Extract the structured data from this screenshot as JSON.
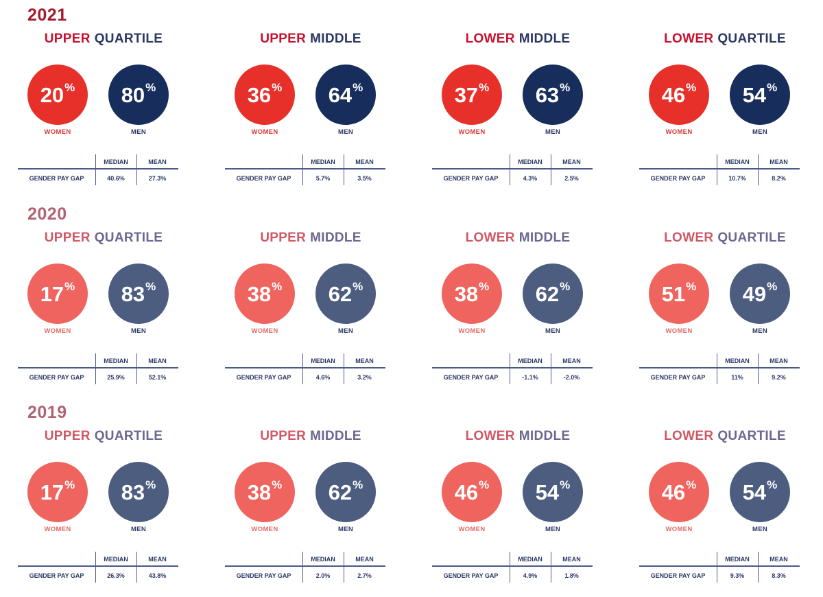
{
  "labels": {
    "women": "WOMEN",
    "men": "MEN",
    "median": "MEDIAN",
    "mean": "MEAN",
    "row": "GENDER PAY GAP",
    "pct": "%"
  },
  "years": [
    {
      "year": "2021",
      "colors": {
        "year": "#a01c2c",
        "women": "#e7302a",
        "men": "#172d5b",
        "title_a": "#c8102e",
        "title_b": "#2b3763",
        "women_label": "#d83a34"
      },
      "quartiles": [
        {
          "title_a": "UPPER",
          "title_b": "QUARTILE",
          "women": "20",
          "men": "80",
          "median": "40.6%",
          "mean": "27.3%"
        },
        {
          "title_a": "UPPER",
          "title_b": "MIDDLE",
          "women": "36",
          "men": "64",
          "median": "5.7%",
          "mean": "3.5%"
        },
        {
          "title_a": "LOWER",
          "title_b": "MIDDLE",
          "women": "37",
          "men": "63",
          "median": "4.3%",
          "mean": "2.5%"
        },
        {
          "title_a": "LOWER",
          "title_b": "QUARTILE",
          "women": "46",
          "men": "54",
          "median": "10.7%",
          "mean": "8.2%"
        }
      ]
    },
    {
      "year": "2020",
      "colors": {
        "year": "#b06472",
        "women": "#ef645e",
        "men": "#4d5d80",
        "title_a": "#d05865",
        "title_b": "#6a6890",
        "women_label": "#e36a66"
      },
      "quartiles": [
        {
          "title_a": "UPPER",
          "title_b": "QUARTILE",
          "women": "17",
          "men": "83",
          "median": "25.9%",
          "mean": "52.1%"
        },
        {
          "title_a": "UPPER",
          "title_b": "MIDDLE",
          "women": "38",
          "men": "62",
          "median": "4.6%",
          "mean": "3.2%"
        },
        {
          "title_a": "LOWER",
          "title_b": "MIDDLE",
          "women": "38",
          "men": "62",
          "median": "-1.1%",
          "mean": "-2.0%"
        },
        {
          "title_a": "LOWER",
          "title_b": "QUARTILE",
          "women": "51",
          "men": "49",
          "median": "11%",
          "mean": "9.2%"
        }
      ]
    },
    {
      "year": "2019",
      "colors": {
        "year": "#b06472",
        "women": "#ef645e",
        "men": "#4d5d80",
        "title_a": "#d05865",
        "title_b": "#6a6890",
        "women_label": "#e36a66"
      },
      "quartiles": [
        {
          "title_a": "UPPER",
          "title_b": "QUARTILE",
          "women": "17",
          "men": "83",
          "median": "26.3%",
          "mean": "43.8%"
        },
        {
          "title_a": "UPPER",
          "title_b": "MIDDLE",
          "women": "38",
          "men": "62",
          "median": "2.0%",
          "mean": "2.7%"
        },
        {
          "title_a": "LOWER",
          "title_b": "MIDDLE",
          "women": "46",
          "men": "54",
          "median": "4.9%",
          "mean": "1.8%"
        },
        {
          "title_a": "LOWER",
          "title_b": "QUARTILE",
          "women": "46",
          "men": "54",
          "median": "9.3%",
          "mean": "8.3%"
        }
      ]
    }
  ]
}
